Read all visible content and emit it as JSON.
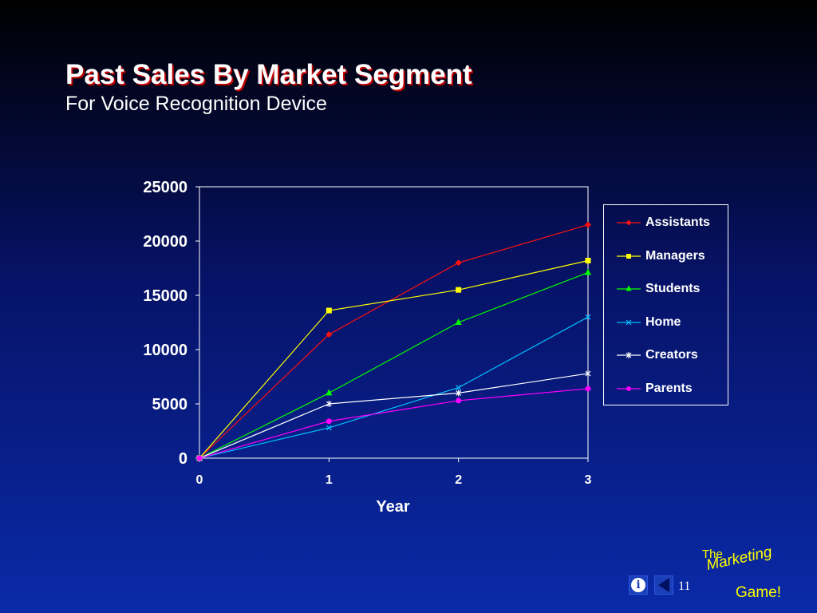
{
  "slide": {
    "title": "Past Sales By Market Segment",
    "subtitle": "For Voice Recognition Device",
    "page_number": "11"
  },
  "brand": {
    "the": "The",
    "marketing": "Marketing",
    "game": "Game!"
  },
  "nav": {
    "info_icon": "i"
  },
  "chart_data": {
    "type": "line",
    "x": [
      0,
      1,
      2,
      3
    ],
    "xlabel": "Year",
    "ylabel": "",
    "xlim": [
      0,
      3
    ],
    "ylim": [
      0,
      25000
    ],
    "yticks": [
      0,
      5000,
      10000,
      15000,
      20000,
      25000
    ],
    "xticks": [
      0,
      1,
      2,
      3
    ],
    "grid": false,
    "legend_position": "right",
    "series": [
      {
        "name": "Assistants",
        "color": "#ff1010",
        "marker": "diamond",
        "values": [
          0,
          11400,
          18000,
          21500
        ]
      },
      {
        "name": "Managers",
        "color": "#ffff00",
        "marker": "square",
        "values": [
          0,
          13600,
          15500,
          18200
        ]
      },
      {
        "name": "Students",
        "color": "#00ff00",
        "marker": "triangle",
        "values": [
          0,
          6000,
          12500,
          17100
        ]
      },
      {
        "name": "Home",
        "color": "#00c0ff",
        "marker": "x",
        "values": [
          0,
          2800,
          6500,
          13000
        ]
      },
      {
        "name": "Creators",
        "color": "#ffffff",
        "marker": "star",
        "values": [
          0,
          5000,
          6000,
          7800
        ]
      },
      {
        "name": "Parents",
        "color": "#ff00ff",
        "marker": "circle",
        "values": [
          0,
          3400,
          5300,
          6400
        ]
      }
    ]
  }
}
